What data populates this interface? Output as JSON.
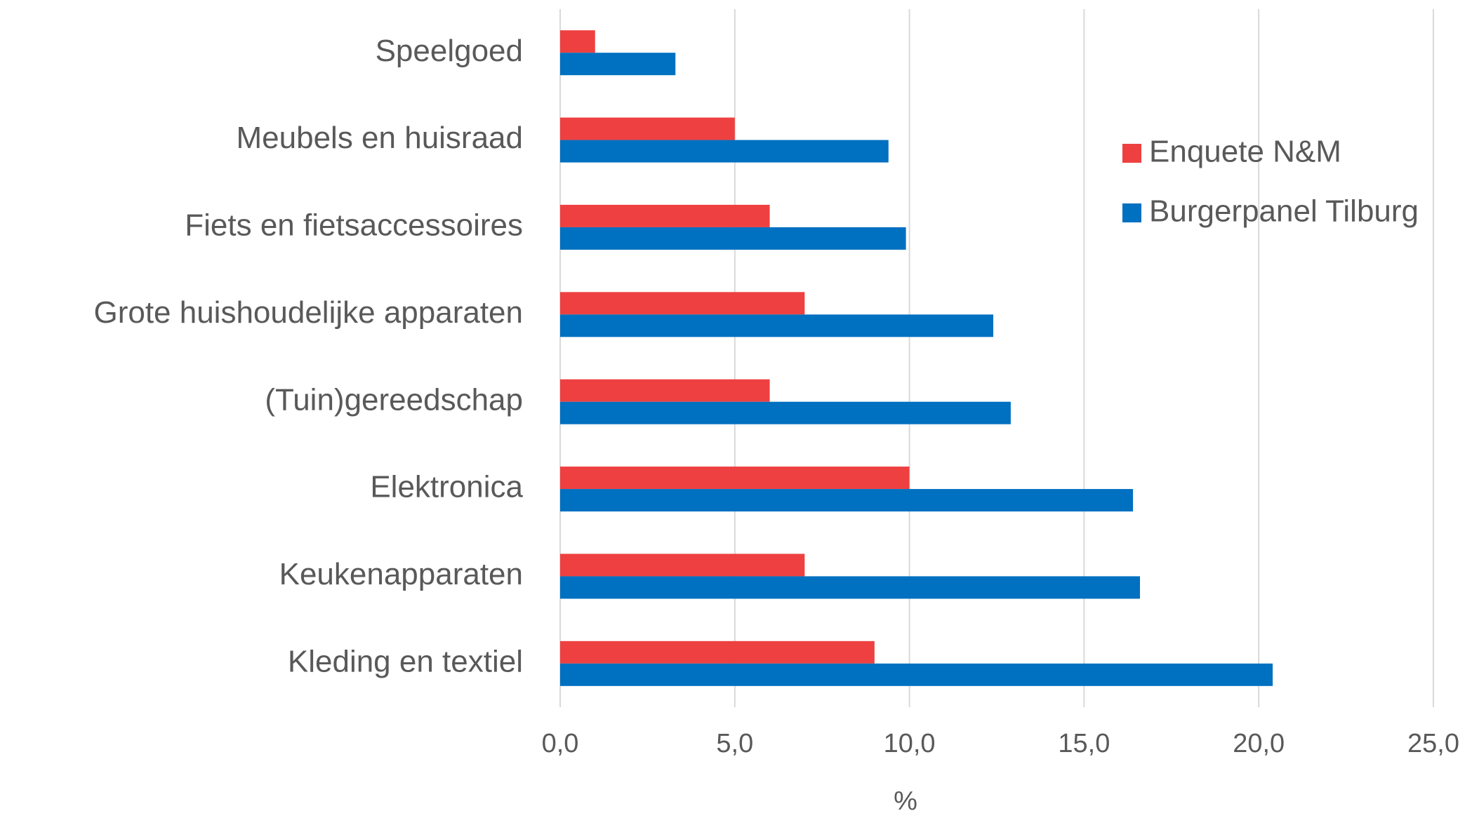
{
  "chart_data": {
    "type": "bar",
    "orientation": "horizontal",
    "categories": [
      "Speelgoed",
      "Meubels en huisraad",
      "Fiets en fietsaccessoires",
      "Grote huishoudelijke apparaten",
      "(Tuin)gereedschap",
      "Elektronica",
      "Keukenapparaten",
      "Kleding en textiel"
    ],
    "series": [
      {
        "name": "Enquete N&M",
        "color": "#ee4040",
        "values": [
          1.0,
          5.0,
          6.0,
          7.0,
          6.0,
          10.0,
          7.0,
          9.0
        ]
      },
      {
        "name": "Burgerpanel Tilburg",
        "color": "#0070c0",
        "values": [
          3.3,
          9.4,
          9.9,
          12.4,
          12.9,
          16.4,
          16.6,
          20.4
        ]
      }
    ],
    "xlabel": "%",
    "xlim": [
      0,
      25
    ],
    "xticks": [
      {
        "value": 0,
        "label": "0,0"
      },
      {
        "value": 5,
        "label": "5,0"
      },
      {
        "value": 10,
        "label": "10,0"
      },
      {
        "value": 15,
        "label": "15,0"
      },
      {
        "value": 20,
        "label": "20,0"
      },
      {
        "value": 25,
        "label": "25,0"
      }
    ],
    "grid": true,
    "legend": "upper right"
  }
}
